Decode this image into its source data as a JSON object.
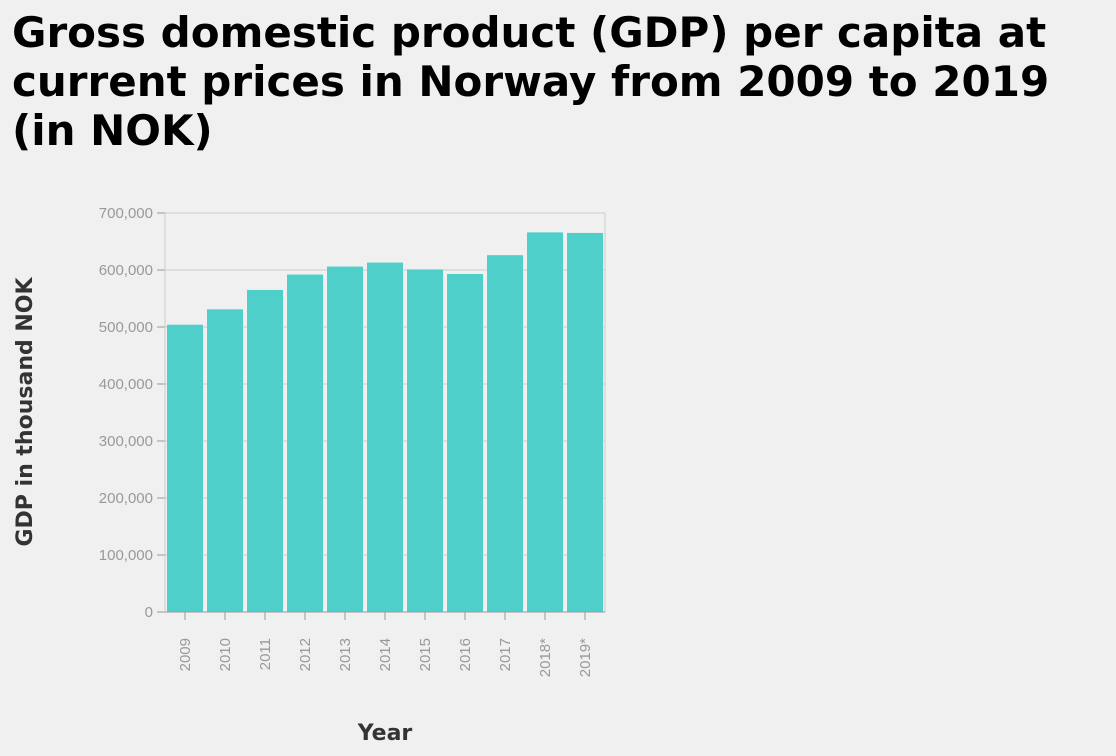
{
  "chart_data": {
    "type": "bar",
    "title": "Gross domestic product (GDP) per capita at current prices in Norway from 2009 to 2019 (in NOK)",
    "xlabel": "Year",
    "ylabel": "GDP in thousand NOK",
    "categories": [
      "2009",
      "2010",
      "2011",
      "2012",
      "2013",
      "2014",
      "2015",
      "2016",
      "2017",
      "2018*",
      "2019*"
    ],
    "values": [
      504000,
      531000,
      565000,
      592000,
      606000,
      613000,
      601000,
      593000,
      626000,
      666000,
      665000
    ],
    "ylim": [
      0,
      700000
    ],
    "yticks": [
      0,
      100000,
      200000,
      300000,
      400000,
      500000,
      600000,
      700000
    ],
    "ytick_labels": [
      "0",
      "100,000",
      "200,000",
      "300,000",
      "400,000",
      "500,000",
      "600,000",
      "700,000"
    ],
    "grid": true,
    "colors": {
      "bar": "#4ecfc9",
      "grid": "#cccccc",
      "axis": "#999999",
      "background": "#f0f0f0"
    }
  }
}
